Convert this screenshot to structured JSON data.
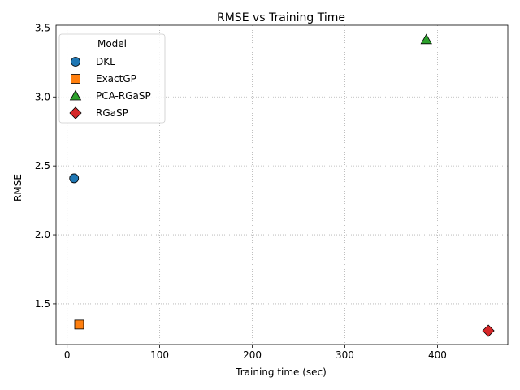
{
  "chart_data": {
    "type": "scatter",
    "title": "RMSE vs Training Time",
    "xlabel": "Training time (sec)",
    "ylabel": "RMSE",
    "xlim": [
      -12,
      476
    ],
    "ylim": [
      1.205,
      3.52
    ],
    "xticks": [
      0,
      100,
      200,
      300,
      400
    ],
    "yticks": [
      1.5,
      2.0,
      2.5,
      3.0,
      3.5
    ],
    "xtick_labels": [
      "0",
      "100",
      "200",
      "300",
      "400"
    ],
    "ytick_labels": [
      "1.5",
      "2.0",
      "2.5",
      "3.0",
      "3.5"
    ],
    "grid": true,
    "legend": {
      "title": "Model",
      "position": "top-left"
    },
    "series": [
      {
        "name": "DKL",
        "marker": "circle",
        "color": "#1f77b4",
        "x": [
          7.5
        ],
        "y": [
          2.41
        ]
      },
      {
        "name": "ExactGP",
        "marker": "square",
        "color": "#ff7f0e",
        "x": [
          13
        ],
        "y": [
          1.35
        ]
      },
      {
        "name": "PCA-RGaSP",
        "marker": "triangle",
        "color": "#2ca02c",
        "x": [
          388
        ],
        "y": [
          3.415
        ]
      },
      {
        "name": "RGaSP",
        "marker": "diamond",
        "color": "#d62728",
        "x": [
          455
        ],
        "y": [
          1.305
        ]
      }
    ]
  }
}
